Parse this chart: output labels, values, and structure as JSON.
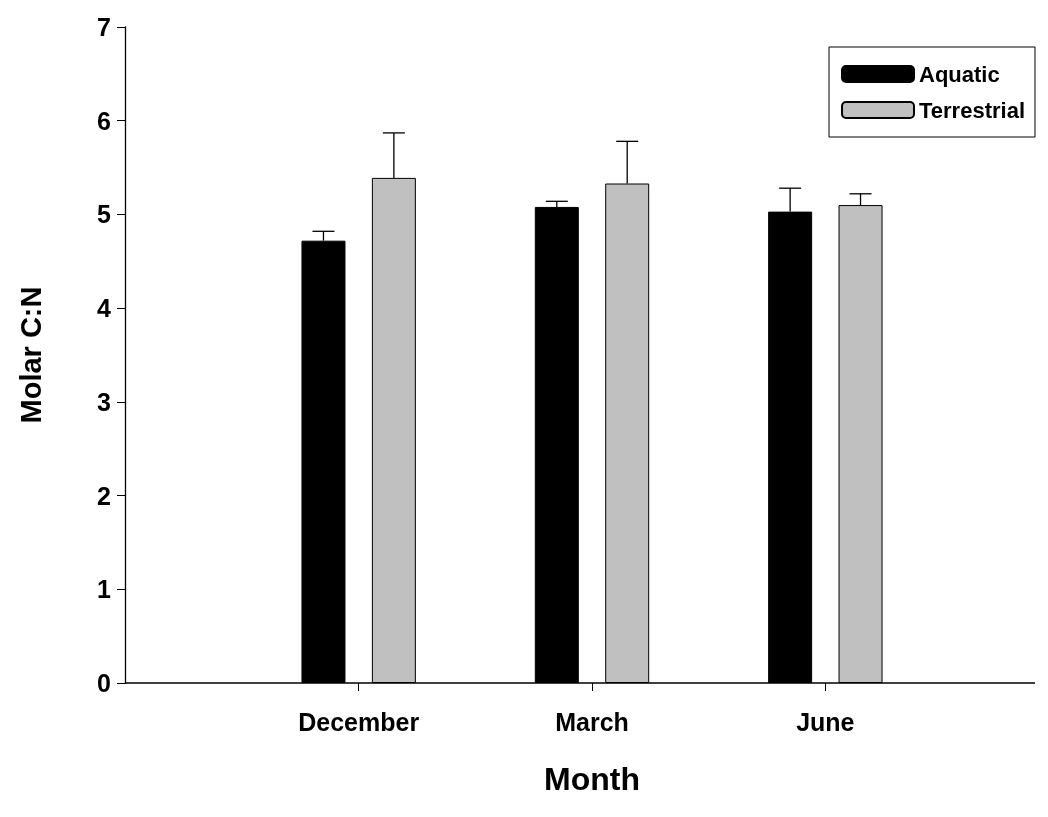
{
  "chart_data": {
    "type": "bar",
    "xlabel": "Month",
    "ylabel": "Molar C:N",
    "categories": [
      "December",
      "March",
      "June"
    ],
    "series": [
      {
        "name": "Aquatic",
        "color": "#000000",
        "values": [
          4.72,
          5.08,
          5.03
        ],
        "errors": [
          [
            4.72,
            4.82
          ],
          [
            5.08,
            5.14
          ],
          [
            5.03,
            5.28
          ]
        ]
      },
      {
        "name": "Terrestrial",
        "color": "#c0c0c0",
        "values": [
          5.39,
          5.33,
          5.1
        ],
        "errors": [
          [
            5.39,
            5.87
          ],
          [
            5.33,
            5.78
          ],
          [
            5.1,
            5.22
          ]
        ]
      }
    ],
    "ylim": [
      0,
      7
    ],
    "yticks": [
      0,
      1,
      2,
      3,
      4,
      5,
      6,
      7
    ],
    "grid": false,
    "legend": "top right"
  }
}
